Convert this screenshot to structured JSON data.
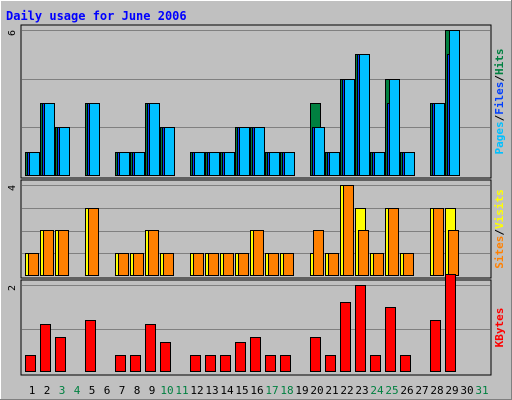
{
  "chart_data": {
    "type": "bar",
    "title": "Daily usage for June 2006",
    "colors": {
      "background": "#c0c0c0",
      "grid": "#808080",
      "hits": "#008040",
      "files": "#0040ff",
      "pages": "#00c0ff",
      "visits": "#ffff00",
      "sites": "#ff8000",
      "kbytes": "#ff0000",
      "title": "#0000ff",
      "weekend_day": "#008040",
      "weekday_day": "#000000"
    },
    "days": [
      {
        "label": "1",
        "weekend": false
      },
      {
        "label": "2",
        "weekend": false
      },
      {
        "label": "3",
        "weekend": true
      },
      {
        "label": "4",
        "weekend": true
      },
      {
        "label": "5",
        "weekend": false
      },
      {
        "label": "6",
        "weekend": false
      },
      {
        "label": "7",
        "weekend": false
      },
      {
        "label": "8",
        "weekend": false
      },
      {
        "label": "9",
        "weekend": false
      },
      {
        "label": "10",
        "weekend": true
      },
      {
        "label": "11",
        "weekend": true
      },
      {
        "label": "12",
        "weekend": false
      },
      {
        "label": "13",
        "weekend": false
      },
      {
        "label": "14",
        "weekend": false
      },
      {
        "label": "15",
        "weekend": false
      },
      {
        "label": "16",
        "weekend": false
      },
      {
        "label": "17",
        "weekend": true
      },
      {
        "label": "18",
        "weekend": true
      },
      {
        "label": "19",
        "weekend": false
      },
      {
        "label": "20",
        "weekend": false
      },
      {
        "label": "21",
        "weekend": false
      },
      {
        "label": "22",
        "weekend": false
      },
      {
        "label": "23",
        "weekend": false
      },
      {
        "label": "24",
        "weekend": true
      },
      {
        "label": "25",
        "weekend": true
      },
      {
        "label": "26",
        "weekend": false
      },
      {
        "label": "27",
        "weekend": false
      },
      {
        "label": "28",
        "weekend": false
      },
      {
        "label": "29",
        "weekend": false
      },
      {
        "label": "30",
        "weekend": false
      },
      {
        "label": "31",
        "weekend": true
      }
    ],
    "panels": [
      {
        "id": "top",
        "ymax": 6,
        "ymax_label": "6",
        "legend": [
          {
            "text": "Pages",
            "color": "#00c0ff"
          },
          {
            "text": "/",
            "color": "#000000"
          },
          {
            "text": "Files",
            "color": "#0040ff"
          },
          {
            "text": "/",
            "color": "#000000"
          },
          {
            "text": "Hits",
            "color": "#008040"
          }
        ],
        "series": [
          {
            "name": "Hits",
            "color": "#008040",
            "values": [
              1,
              3,
              2,
              0,
              3,
              0,
              1,
              1,
              3,
              2,
              0,
              1,
              1,
              1,
              2,
              2,
              1,
              1,
              0,
              3,
              1,
              4,
              5,
              1,
              4,
              1,
              0,
              3,
              6,
              0,
              0
            ]
          },
          {
            "name": "Files",
            "color": "#0040ff",
            "values": [
              1,
              3,
              2,
              0,
              3,
              0,
              1,
              1,
              3,
              2,
              0,
              1,
              1,
              1,
              2,
              2,
              1,
              1,
              0,
              2,
              1,
              4,
              5,
              1,
              3,
              1,
              0,
              3,
              5,
              0,
              0
            ]
          },
          {
            "name": "Pages",
            "color": "#00c0ff",
            "values": [
              1,
              3,
              2,
              0,
              3,
              0,
              1,
              1,
              3,
              2,
              0,
              1,
              1,
              1,
              2,
              2,
              1,
              1,
              0,
              2,
              1,
              4,
              5,
              1,
              4,
              1,
              0,
              3,
              6,
              0,
              0
            ]
          }
        ]
      },
      {
        "id": "middle",
        "ymax": 4,
        "ymax_label": "4",
        "legend": [
          {
            "text": "Sites",
            "color": "#ff8000"
          },
          {
            "text": "/",
            "color": "#000000"
          },
          {
            "text": "Visits",
            "color": "#ffff00"
          }
        ],
        "series": [
          {
            "name": "Visits",
            "color": "#ffff00",
            "values": [
              1,
              2,
              2,
              0,
              3,
              0,
              1,
              1,
              2,
              1,
              0,
              1,
              1,
              1,
              1,
              2,
              1,
              1,
              0,
              1,
              1,
              4,
              3,
              1,
              3,
              1,
              0,
              3,
              3,
              0,
              0
            ]
          },
          {
            "name": "Sites",
            "color": "#ff8000",
            "values": [
              1,
              2,
              2,
              0,
              3,
              0,
              1,
              1,
              2,
              1,
              0,
              1,
              1,
              1,
              1,
              2,
              1,
              1,
              0,
              2,
              1,
              4,
              2,
              1,
              3,
              1,
              0,
              3,
              2,
              0,
              0
            ]
          }
        ]
      },
      {
        "id": "bottom",
        "ymax": 2,
        "ymax_label": "2",
        "legend": [
          {
            "text": "KBytes",
            "color": "#ff0000"
          }
        ],
        "series": [
          {
            "name": "KBytes",
            "color": "#ff0000",
            "values": [
              0.4,
              1.1,
              0.8,
              0,
              1.2,
              0,
              0.4,
              0.4,
              1.1,
              0.7,
              0,
              0.4,
              0.4,
              0.4,
              0.7,
              0.8,
              0.4,
              0.4,
              0,
              0.8,
              0.4,
              1.6,
              2.0,
              0.4,
              1.5,
              0.4,
              0,
              1.2,
              2.25,
              0,
              0
            ]
          }
        ]
      }
    ]
  }
}
